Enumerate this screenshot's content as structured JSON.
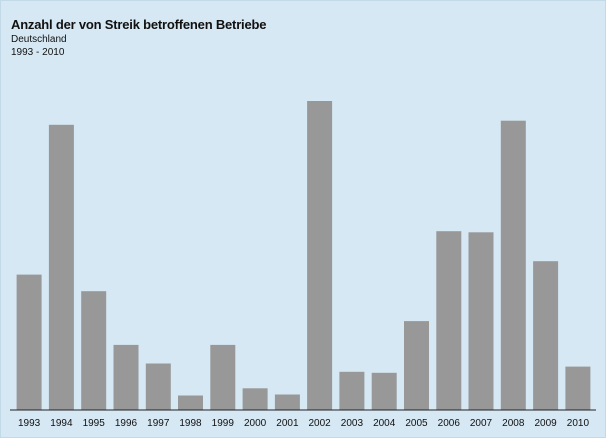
{
  "chart_data": {
    "type": "bar",
    "title": "Anzahl der von Streik betroffenen Betriebe",
    "subtitle": "Deutschland",
    "period": "1993 - 2010",
    "categories": [
      "1993",
      "1994",
      "1995",
      "1996",
      "1997",
      "1998",
      "1999",
      "2000",
      "2001",
      "2002",
      "2003",
      "2004",
      "2005",
      "2006",
      "2007",
      "2008",
      "2009",
      "2010"
    ],
    "values": [
      131,
      276,
      115,
      63,
      45,
      14,
      63,
      21,
      15,
      299,
      37,
      36,
      86,
      173,
      172,
      280,
      144,
      42
    ],
    "ylim": [
      0,
      300
    ],
    "grid": false,
    "bar_color": "#989898",
    "background_color": "#d6e8f4"
  }
}
